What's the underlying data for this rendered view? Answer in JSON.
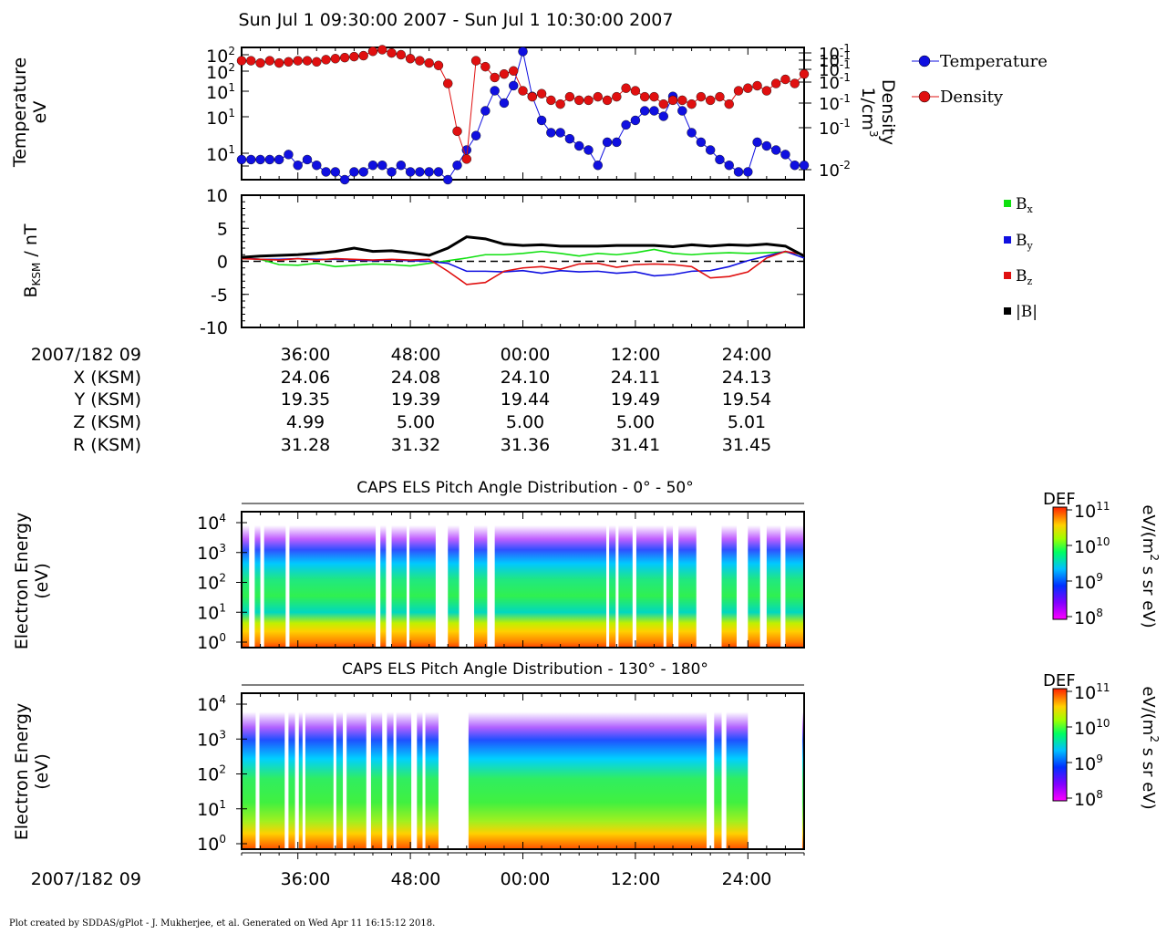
{
  "title": "Sun Jul 1 09:30:00 2007 - Sun Jul 1 10:30:00 2007",
  "footer": "Plot created by SDDAS/gPlot - J. Mukherjee, et al.  Generated on Wed Apr 11 16:15:12 2018.",
  "colors": {
    "temperature": "#1010e0",
    "density": "#e01010",
    "bx": "#10e010",
    "by": "#1010e0",
    "bz": "#e01010",
    "b": "#000000"
  },
  "chart_data": [
    {
      "type": "scatter",
      "ylabel_left": [
        "Temperature",
        "eV"
      ],
      "ylabel_right": [
        "Density",
        "1/cm",
        "3"
      ],
      "left_ticks": [
        "10",
        "10",
        "10",
        "10",
        "10",
        "10"
      ],
      "left_tick_exps": [
        "2",
        "2",
        "1",
        "1",
        "1",
        "1"
      ],
      "right_ticks": [
        "10",
        "10",
        "10",
        "10",
        "10",
        "10",
        "10"
      ],
      "right_tick_exps": [
        "-1",
        "-1",
        "-1",
        "-1",
        "-1",
        "-1",
        "-2"
      ],
      "legend": [
        "Temperature",
        "Density"
      ],
      "x_minutes": [
        0,
        1,
        2,
        3,
        4,
        5,
        6,
        7,
        8,
        9,
        10,
        11,
        12,
        13,
        14,
        15,
        16,
        17,
        18,
        19,
        20,
        21,
        22,
        23,
        24,
        25,
        26,
        27,
        28,
        29,
        30,
        31,
        32,
        33,
        34,
        35,
        36,
        37,
        38,
        39,
        40,
        41,
        42,
        43,
        44,
        45,
        46,
        47,
        48,
        49,
        50,
        51,
        52,
        53,
        54,
        55,
        56,
        57,
        58,
        59,
        60
      ],
      "series": [
        {
          "name": "Temperature",
          "values": [
            8,
            8,
            8,
            8,
            8,
            9,
            7,
            8,
            7,
            6,
            6,
            5,
            6,
            6,
            7,
            7,
            6,
            7,
            6,
            6,
            6,
            6,
            5,
            7,
            10,
            14,
            25,
            40,
            30,
            45,
            100,
            35,
            20,
            15,
            15,
            13,
            11,
            10,
            7,
            12,
            12,
            18,
            20,
            25,
            25,
            22,
            35,
            25,
            15,
            12,
            10,
            8,
            7,
            6,
            6,
            12,
            11,
            10,
            9,
            7,
            7
          ],
          "ylog_range": [
            5,
            110
          ]
        },
        {
          "name": "Density",
          "values": [
            0.3,
            0.3,
            0.28,
            0.3,
            0.28,
            0.29,
            0.3,
            0.3,
            0.29,
            0.31,
            0.32,
            0.33,
            0.34,
            0.35,
            0.4,
            0.42,
            0.38,
            0.36,
            0.32,
            0.3,
            0.28,
            0.26,
            0.15,
            0.035,
            0.015,
            0.3,
            0.25,
            0.18,
            0.2,
            0.22,
            0.12,
            0.1,
            0.11,
            0.09,
            0.08,
            0.1,
            0.09,
            0.09,
            0.1,
            0.09,
            0.1,
            0.13,
            0.12,
            0.1,
            0.1,
            0.08,
            0.09,
            0.09,
            0.08,
            0.1,
            0.09,
            0.1,
            0.08,
            0.12,
            0.13,
            0.14,
            0.12,
            0.15,
            0.17,
            0.15,
            0.2
          ],
          "ylog_range": [
            0.008,
            0.45
          ]
        }
      ]
    },
    {
      "type": "line",
      "ylabel": "B",
      "ylabel_sub": "KSM",
      "ylabel_unit": " / nT",
      "ylim": [
        -10,
        10
      ],
      "yticks": [
        "10",
        "5",
        "0",
        "-5",
        "-10"
      ],
      "legend": [
        "B",
        "B",
        "B",
        "|B|"
      ],
      "legend_subs": [
        "x",
        "y",
        "z",
        ""
      ],
      "x_minutes": [
        0,
        2,
        4,
        6,
        8,
        10,
        12,
        14,
        16,
        18,
        20,
        22,
        24,
        26,
        28,
        30,
        32,
        34,
        36,
        38,
        40,
        42,
        44,
        46,
        48,
        50,
        52,
        54,
        56,
        58,
        60
      ],
      "series": [
        {
          "name": "Bx",
          "values": [
            0.5,
            0.3,
            -0.5,
            -0.6,
            -0.3,
            -0.8,
            -0.6,
            -0.4,
            -0.5,
            -0.7,
            -0.3,
            0.1,
            0.5,
            1.0,
            1.0,
            1.2,
            1.5,
            1.2,
            0.8,
            1.2,
            1.0,
            1.3,
            1.8,
            1.2,
            1.0,
            1.2,
            1.3,
            1.2,
            1.3,
            1.4,
            1.0
          ]
        },
        {
          "name": "By",
          "values": [
            0.5,
            0.3,
            0.3,
            0.4,
            0.3,
            0.3,
            0.2,
            0.1,
            0.2,
            0.1,
            0.0,
            -0.3,
            -1.5,
            -1.5,
            -1.6,
            -1.4,
            -1.8,
            -1.4,
            -1.6,
            -1.5,
            -1.8,
            -1.6,
            -2.2,
            -2.0,
            -1.5,
            -1.4,
            -0.8,
            0.1,
            0.8,
            1.5,
            0.5
          ]
        },
        {
          "name": "Bz",
          "values": [
            0.4,
            0.3,
            0.2,
            0.4,
            0.2,
            0.4,
            0.3,
            0.2,
            0.3,
            0.2,
            0.3,
            -1.5,
            -3.5,
            -3.2,
            -1.5,
            -1.0,
            -0.8,
            -1.2,
            -0.4,
            -0.3,
            -0.9,
            -0.5,
            -0.4,
            -0.5,
            -0.8,
            -2.5,
            -2.3,
            -1.6,
            0.5,
            1.5,
            1.0
          ]
        },
        {
          "name": "|B|",
          "values": [
            0.6,
            0.8,
            0.9,
            1.0,
            1.2,
            1.5,
            2.0,
            1.5,
            1.6,
            1.3,
            0.9,
            2.0,
            3.7,
            3.4,
            2.6,
            2.4,
            2.5,
            2.3,
            2.3,
            2.3,
            2.4,
            2.4,
            2.4,
            2.2,
            2.5,
            2.3,
            2.5,
            2.4,
            2.6,
            2.3,
            0.8
          ]
        }
      ]
    },
    {
      "type": "table",
      "rows": [
        {
          "label": "2007/182 09",
          "values": [
            "36:00",
            "48:00",
            "00:00",
            "12:00",
            "24:00"
          ]
        },
        {
          "label": "X (KSM)",
          "values": [
            "24.06",
            "24.08",
            "24.10",
            "24.11",
            "24.13"
          ]
        },
        {
          "label": "Y (KSM)",
          "values": [
            "19.35",
            "19.39",
            "19.44",
            "19.49",
            "19.54"
          ]
        },
        {
          "label": "Z (KSM)",
          "values": [
            "4.99",
            "5.00",
            "5.00",
            "5.00",
            "5.01"
          ]
        },
        {
          "label": "R (KSM)",
          "values": [
            "31.28",
            "31.32",
            "31.36",
            "31.41",
            "31.45"
          ]
        }
      ]
    },
    {
      "type": "heatmap",
      "title": "CAPS ELS Pitch Angle Distribution - 0° - 50°",
      "ylabel": [
        "Electron Energy",
        "(eV)"
      ],
      "yticks": [
        "10",
        "10",
        "10",
        "10",
        "10"
      ],
      "ytick_exps": [
        "4",
        "3",
        "2",
        "1",
        "0"
      ],
      "colorbar": {
        "label": "DEF",
        "unit": "eV/(m",
        "unit_exp": "2",
        "unit_tail": " s sr eV)",
        "ticks": [
          "10",
          "10",
          "10",
          "10"
        ],
        "tick_exps": [
          "11",
          "10",
          "9",
          "8"
        ]
      },
      "gaps_minutes": [
        [
          0.8,
          1.4
        ],
        [
          2.0,
          2.4
        ],
        [
          4.7,
          5.1
        ],
        [
          14.3,
          14.8
        ],
        [
          15.4,
          16.0
        ],
        [
          17.6,
          17.9
        ],
        [
          20.7,
          22.0
        ],
        [
          23.2,
          24.8
        ],
        [
          26.2,
          27.0
        ],
        [
          38.9,
          39.2
        ],
        [
          39.9,
          40.2
        ],
        [
          41.7,
          42.1
        ],
        [
          45.0,
          45.3
        ],
        [
          46.0,
          46.6
        ],
        [
          48.5,
          51.2
        ],
        [
          52.8,
          54.0
        ],
        [
          55.3,
          56.0
        ],
        [
          57.5,
          58.0
        ]
      ]
    },
    {
      "type": "heatmap",
      "title": "CAPS ELS Pitch Angle Distribution - 130° - 180°",
      "ylabel": [
        "Electron Energy",
        "(eV)"
      ],
      "yticks": [
        "10",
        "10",
        "10",
        "10",
        "10"
      ],
      "ytick_exps": [
        "4",
        "3",
        "2",
        "1",
        "0"
      ],
      "colorbar": {
        "label": "DEF",
        "unit": "eV/(m",
        "unit_exp": "2",
        "unit_tail": " s sr eV)",
        "ticks": [
          "10",
          "10",
          "10",
          "10"
        ],
        "tick_exps": [
          "11",
          "10",
          "9",
          "8"
        ]
      },
      "gaps_minutes": [
        [
          1.5,
          1.9
        ],
        [
          4.6,
          5.0
        ],
        [
          5.7,
          6.1
        ],
        [
          6.5,
          6.8
        ],
        [
          9.8,
          10.1
        ],
        [
          10.8,
          11.2
        ],
        [
          13.3,
          13.8
        ],
        [
          15.0,
          15.5
        ],
        [
          16.2,
          16.5
        ],
        [
          18.1,
          18.7
        ],
        [
          19.3,
          19.6
        ],
        [
          21.0,
          24.2
        ],
        [
          49.6,
          50.4
        ],
        [
          51.2,
          51.7
        ],
        [
          54.0,
          59.8
        ]
      ]
    },
    {
      "type": "axis",
      "label": "2007/182 09",
      "ticks": [
        "36:00",
        "48:00",
        "00:00",
        "12:00",
        "24:00"
      ]
    }
  ]
}
